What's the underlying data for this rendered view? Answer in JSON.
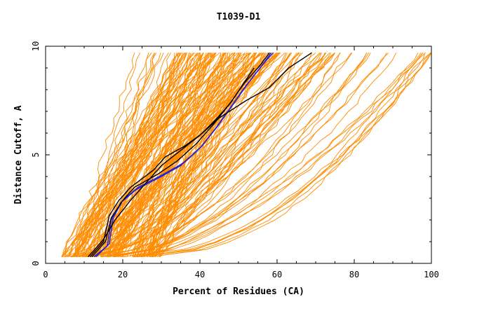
{
  "chart_data": {
    "type": "line",
    "title": "T1039-D1",
    "xlabel": "Percent of Residues (CA)",
    "ylabel": "Distance Cutoff, A",
    "xlim": [
      0,
      100
    ],
    "ylim": [
      0,
      10
    ],
    "xticks": [
      0,
      20,
      40,
      60,
      80,
      100
    ],
    "yticks": [
      0,
      5,
      10
    ],
    "x_tick_labels": [
      "0",
      "20",
      "40",
      "60",
      "80",
      "100"
    ],
    "y_tick_labels": [
      "0",
      "5",
      "10"
    ],
    "grid": false,
    "legend": "none",
    "colors": {
      "orange": "#ff8c00",
      "blue": "#1f1fd6",
      "black": "#000000",
      "axis": "#000000"
    },
    "orange_family": {
      "start_x_range": [
        4,
        30
      ],
      "start_y": 0.3,
      "end_y": 9.7,
      "end_x_range": [
        21,
        75
      ],
      "count": 150
    },
    "orange_fans": [
      {
        "end_x": 62,
        "start_x": 7,
        "count": 4
      },
      {
        "end_x": 66,
        "start_x": 9,
        "count": 4
      },
      {
        "end_x": 72,
        "start_x": 11,
        "count": 4
      },
      {
        "end_x": 78,
        "start_x": 13,
        "count": 4
      },
      {
        "end_x": 84,
        "start_x": 16,
        "count": 4
      },
      {
        "end_x": 90,
        "start_x": 19,
        "count": 3
      },
      {
        "end_x": 96,
        "start_x": 22,
        "count": 4
      },
      {
        "end_x": 100,
        "start_x": 25,
        "count": 6
      }
    ],
    "series": [
      {
        "color": "blue",
        "x": [
          12.5,
          16.0,
          17.0,
          19.5,
          23.5,
          30.0,
          35.0,
          40.0,
          44.0,
          48.0,
          52.0,
          56.0,
          58.5
        ],
        "y": [
          0.3,
          0.8,
          2.0,
          2.8,
          3.4,
          4.0,
          4.5,
          5.3,
          6.2,
          7.2,
          8.2,
          9.1,
          9.7
        ]
      },
      {
        "color": "blue",
        "x": [
          13.0,
          16.5,
          17.5,
          20.0,
          24.0,
          30.5,
          35.5,
          40.5,
          44.5,
          48.5,
          52.5,
          56.5,
          59.0
        ],
        "y": [
          0.3,
          0.9,
          2.1,
          2.9,
          3.5,
          4.1,
          4.6,
          5.4,
          6.3,
          7.3,
          8.3,
          9.2,
          9.7
        ]
      },
      {
        "color": "black",
        "x": [
          12.0,
          15.5,
          17.0,
          20.0,
          23.0,
          29.0,
          34.0,
          39.0,
          43.5,
          47.5,
          51.5,
          55.5,
          58.0
        ],
        "y": [
          0.3,
          1.0,
          2.1,
          2.9,
          3.5,
          4.1,
          4.7,
          5.5,
          6.4,
          7.3,
          8.3,
          9.1,
          9.7
        ]
      },
      {
        "color": "black",
        "x": [
          11.5,
          15.0,
          16.5,
          19.0,
          22.0,
          28.0,
          31.0,
          36.0,
          40.0,
          44.0,
          48.0,
          51.0,
          54.0
        ],
        "y": [
          0.3,
          1.0,
          2.2,
          2.9,
          3.5,
          4.3,
          4.9,
          5.4,
          5.9,
          6.6,
          7.4,
          8.2,
          9.0
        ]
      },
      {
        "color": "black",
        "x": [
          11.0,
          15.0,
          18.0,
          22.0,
          26.0,
          30.0,
          35.0,
          40.0,
          45.0,
          52.0,
          58.0,
          63.0,
          69.0
        ],
        "y": [
          0.3,
          1.1,
          2.0,
          2.9,
          3.7,
          4.5,
          5.2,
          5.9,
          6.7,
          7.5,
          8.1,
          9.0,
          9.7
        ]
      }
    ]
  }
}
